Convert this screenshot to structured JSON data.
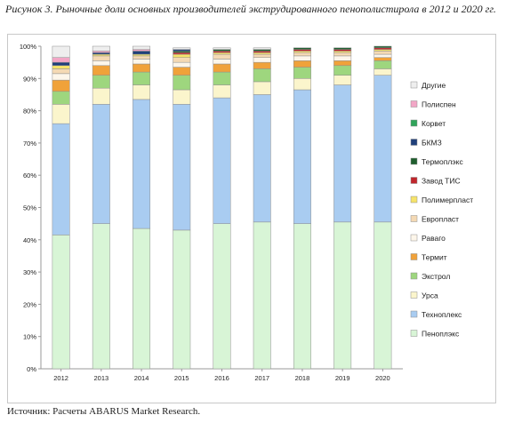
{
  "caption": "Рисунок 3. Рыночные доли основных производителей экструдированного пенополистирола в 2012 и 2020 гг.",
  "source": "Источник: Расчеты ABARUS Market Research.",
  "chart_data": {
    "type": "bar",
    "stacked": true,
    "categories": [
      "2012",
      "2013",
      "2014",
      "2015",
      "2016",
      "2017",
      "2018",
      "2019",
      "2020"
    ],
    "y_ticks": [
      "0%",
      "10%",
      "20%",
      "30%",
      "40%",
      "50%",
      "60%",
      "70%",
      "80%",
      "90%",
      "100%"
    ],
    "ylim": [
      0,
      100
    ],
    "grid": false,
    "legend_position": "right",
    "series": [
      {
        "name": "Пеноплэкс",
        "color": "#d8f5d6",
        "values": [
          41.5,
          45,
          43.5,
          43,
          45,
          45.5,
          45,
          45.5,
          45.5
        ]
      },
      {
        "name": "Техноплекс",
        "color": "#a9ccf1",
        "values": [
          34.5,
          37,
          40,
          39,
          39,
          39.5,
          41.5,
          42.5,
          45.5
        ]
      },
      {
        "name": "Урса",
        "color": "#fbf5cc",
        "values": [
          6,
          5,
          4.5,
          4.5,
          4,
          4,
          3.5,
          3,
          2
        ]
      },
      {
        "name": "Экстрол",
        "color": "#9ed67e",
        "values": [
          4,
          4,
          4,
          4.5,
          4,
          4,
          3.5,
          3,
          2.5
        ]
      },
      {
        "name": "Термит",
        "color": "#f0a23a",
        "values": [
          3.5,
          3,
          2.5,
          2.5,
          2.5,
          2,
          2,
          1.5,
          1
        ]
      },
      {
        "name": "Раваго",
        "color": "#fdf6ea",
        "values": [
          2,
          1.5,
          1.5,
          1.5,
          1.5,
          1.5,
          1.5,
          1.5,
          1
        ]
      },
      {
        "name": "Европласт",
        "color": "#f4d9b4",
        "values": [
          1.5,
          1.5,
          1,
          1.5,
          1.5,
          1,
          1,
          1,
          1
        ]
      },
      {
        "name": "Полимерпласт",
        "color": "#f6e36a",
        "values": [
          1,
          0.5,
          0.5,
          1,
          0.5,
          0.5,
          0.5,
          0.5,
          0.5
        ]
      },
      {
        "name": "Завод ТИС",
        "color": "#c0262c",
        "values": [
          0,
          0,
          0,
          0.5,
          0.5,
          0.5,
          0.5,
          0.5,
          0.5
        ]
      },
      {
        "name": "Термоплэкс",
        "color": "#1f5e2e",
        "values": [
          0,
          0,
          0,
          0.5,
          0.5,
          0.5,
          0.5,
          0.5,
          0.5
        ]
      },
      {
        "name": "БКМЗ",
        "color": "#20407a",
        "values": [
          1,
          0.5,
          1,
          0.5,
          0,
          0,
          0,
          0,
          0
        ]
      },
      {
        "name": "Корвет",
        "color": "#2fa45a",
        "values": [
          0,
          0,
          0,
          0,
          0,
          0,
          0,
          0,
          0
        ]
      },
      {
        "name": "Полиспен",
        "color": "#f2a6c6",
        "values": [
          1.5,
          0.5,
          0.5,
          0,
          0,
          0,
          0,
          0,
          0
        ]
      },
      {
        "name": "Другие",
        "color": "#eeeeee",
        "values": [
          3.5,
          1.5,
          1,
          0.5,
          0.5,
          0.5,
          0,
          0,
          0
        ]
      }
    ]
  }
}
